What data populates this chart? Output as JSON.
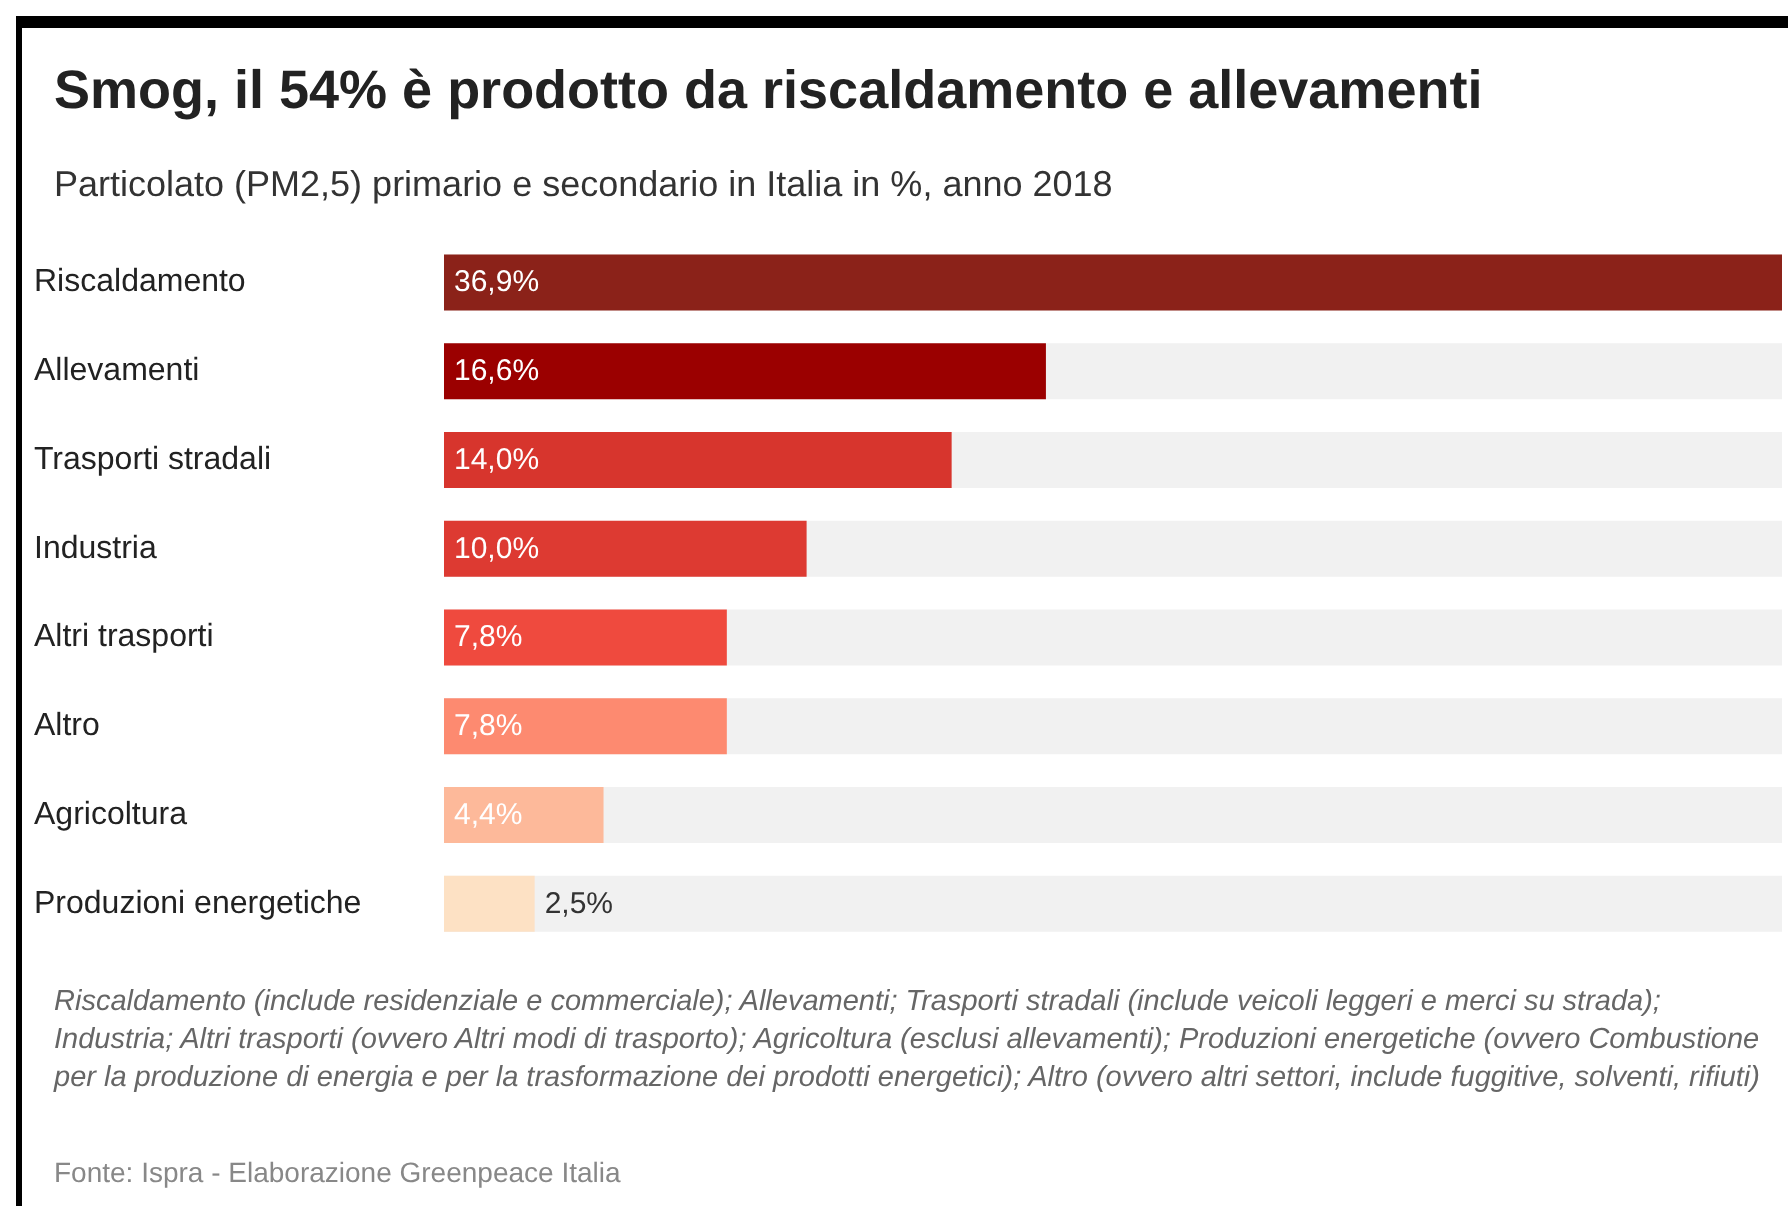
{
  "chart_data": {
    "type": "bar",
    "orientation": "horizontal",
    "title": "Smog, il 54% è prodotto da riscaldamento e allevamenti",
    "subtitle": "Particolato (PM2,5) primario e secondario in Italia in %, anno 2018",
    "categories": [
      "Riscaldamento",
      "Allevamenti",
      "Trasporti stradali",
      "Industria",
      "Altri trasporti",
      "Altro",
      "Agricoltura",
      "Produzioni energetiche"
    ],
    "values": [
      36.9,
      16.6,
      14.0,
      10.0,
      7.8,
      7.8,
      4.4,
      2.5
    ],
    "value_labels": [
      "36,9%",
      "16,6%",
      "14,0%",
      "10,0%",
      "7,8%",
      "7,8%",
      "4,4%",
      "2,5%"
    ],
    "colors": [
      "#8b2219",
      "#9b0000",
      "#d7352d",
      "#dd3a32",
      "#ef4a3e",
      "#fd8a70",
      "#fdb99a",
      "#fde1c4"
    ],
    "annotations": [
      "Riscaldamento (include residenziale e commerciale); Allevamenti; Trasporti stradali (include veicoli leggeri e merci su strada); Industria; Altri trasporti (ovvero Altri modi di trasporto); Agricoltura (esclusi allevamenti); Produzioni energetiche (ovvero Combustione per la produzione di energia e per la trasformazione dei prodotti energetici); Altro (ovvero altri settori, include fuggitive, solventi, rifiuti)",
      "Fonte: Ispra - Elaborazione Greenpeace Italia"
    ]
  }
}
